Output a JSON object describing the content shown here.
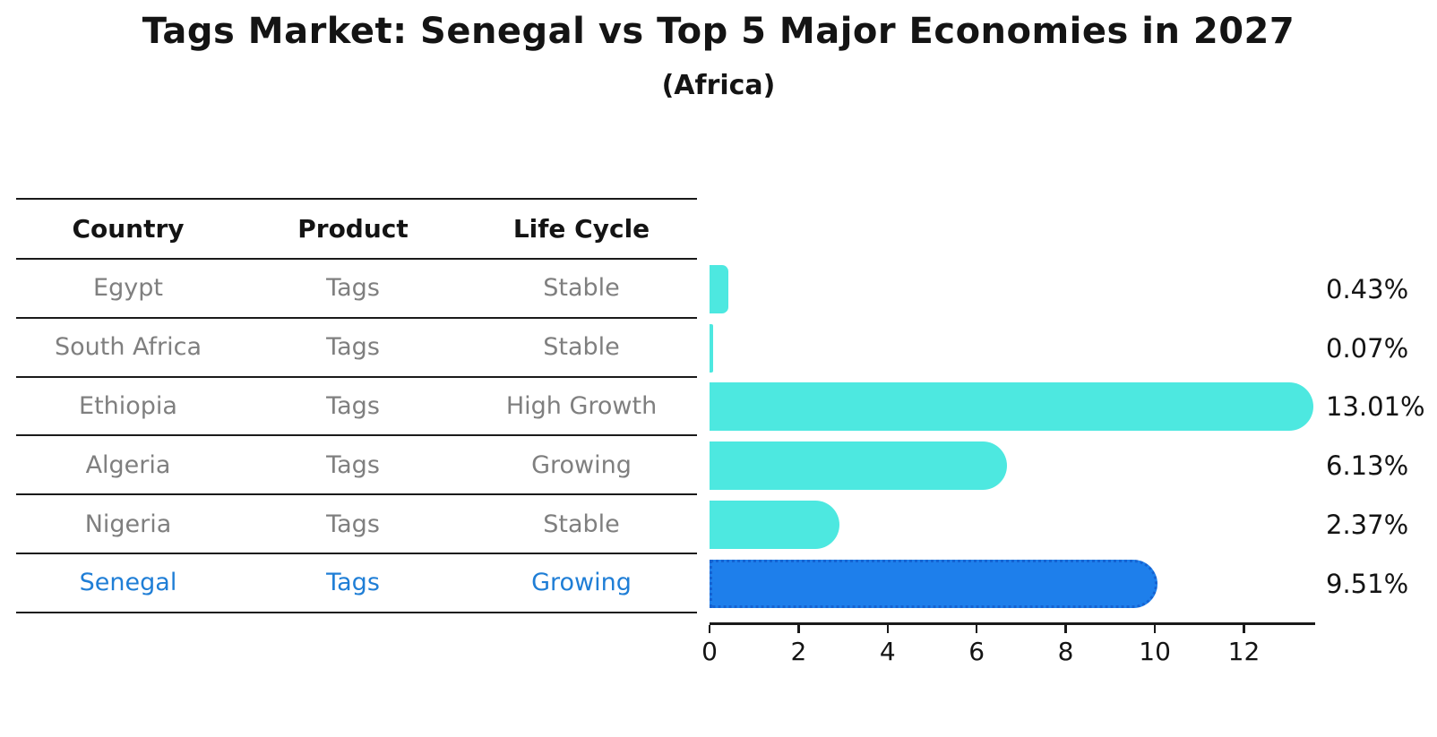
{
  "page": {
    "title": "Tags Market: Senegal vs Top 5 Major Economies in 2027",
    "subtitle": "(Africa)"
  },
  "table": {
    "columns": [
      "Country",
      "Product",
      "Life Cycle"
    ],
    "rows": [
      {
        "country": "Egypt",
        "product": "Tags",
        "life_cycle": "Stable"
      },
      {
        "country": "South Africa",
        "product": "Tags",
        "life_cycle": "Stable"
      },
      {
        "country": "Ethiopia",
        "product": "Tags",
        "life_cycle": "High Growth"
      },
      {
        "country": "Algeria",
        "product": "Tags",
        "life_cycle": "Growing"
      },
      {
        "country": "Nigeria",
        "product": "Tags",
        "life_cycle": "Stable"
      },
      {
        "country": "Senegal",
        "product": "Tags",
        "life_cycle": "Growing"
      }
    ],
    "highlight_row": "Senegal"
  },
  "chart_data": {
    "type": "bar",
    "orientation": "horizontal",
    "title": "Tags Market: Senegal vs Top 5 Major Economies in 2027",
    "subtitle": "(Africa)",
    "categories": [
      "Egypt",
      "South Africa",
      "Ethiopia",
      "Algeria",
      "Nigeria",
      "Senegal"
    ],
    "values": [
      0.43,
      0.07,
      13.01,
      6.13,
      2.37,
      9.51
    ],
    "value_labels": [
      "0.43%",
      "0.07%",
      "13.01%",
      "6.13%",
      "2.37%",
      "9.51%"
    ],
    "x_ticks": [
      "0",
      "2",
      "4",
      "6",
      "8",
      "10",
      "12"
    ],
    "x_tick_values": [
      0,
      2,
      4,
      6,
      8,
      10,
      12
    ],
    "xlim": [
      0,
      13.6
    ],
    "xlabel": "",
    "ylabel": "",
    "grid": false,
    "legend": "none",
    "bar_color": "#4DE8E0",
    "highlight_index": 5,
    "highlight_bar_color": "#1E7FEB",
    "highlight_bar_border": "#1563D2"
  },
  "colors": {
    "heading_text": "#141414",
    "table_text": "#7f7f7f",
    "highlight_text": "#1f7ed6",
    "line_color": "#1a1a1a"
  }
}
